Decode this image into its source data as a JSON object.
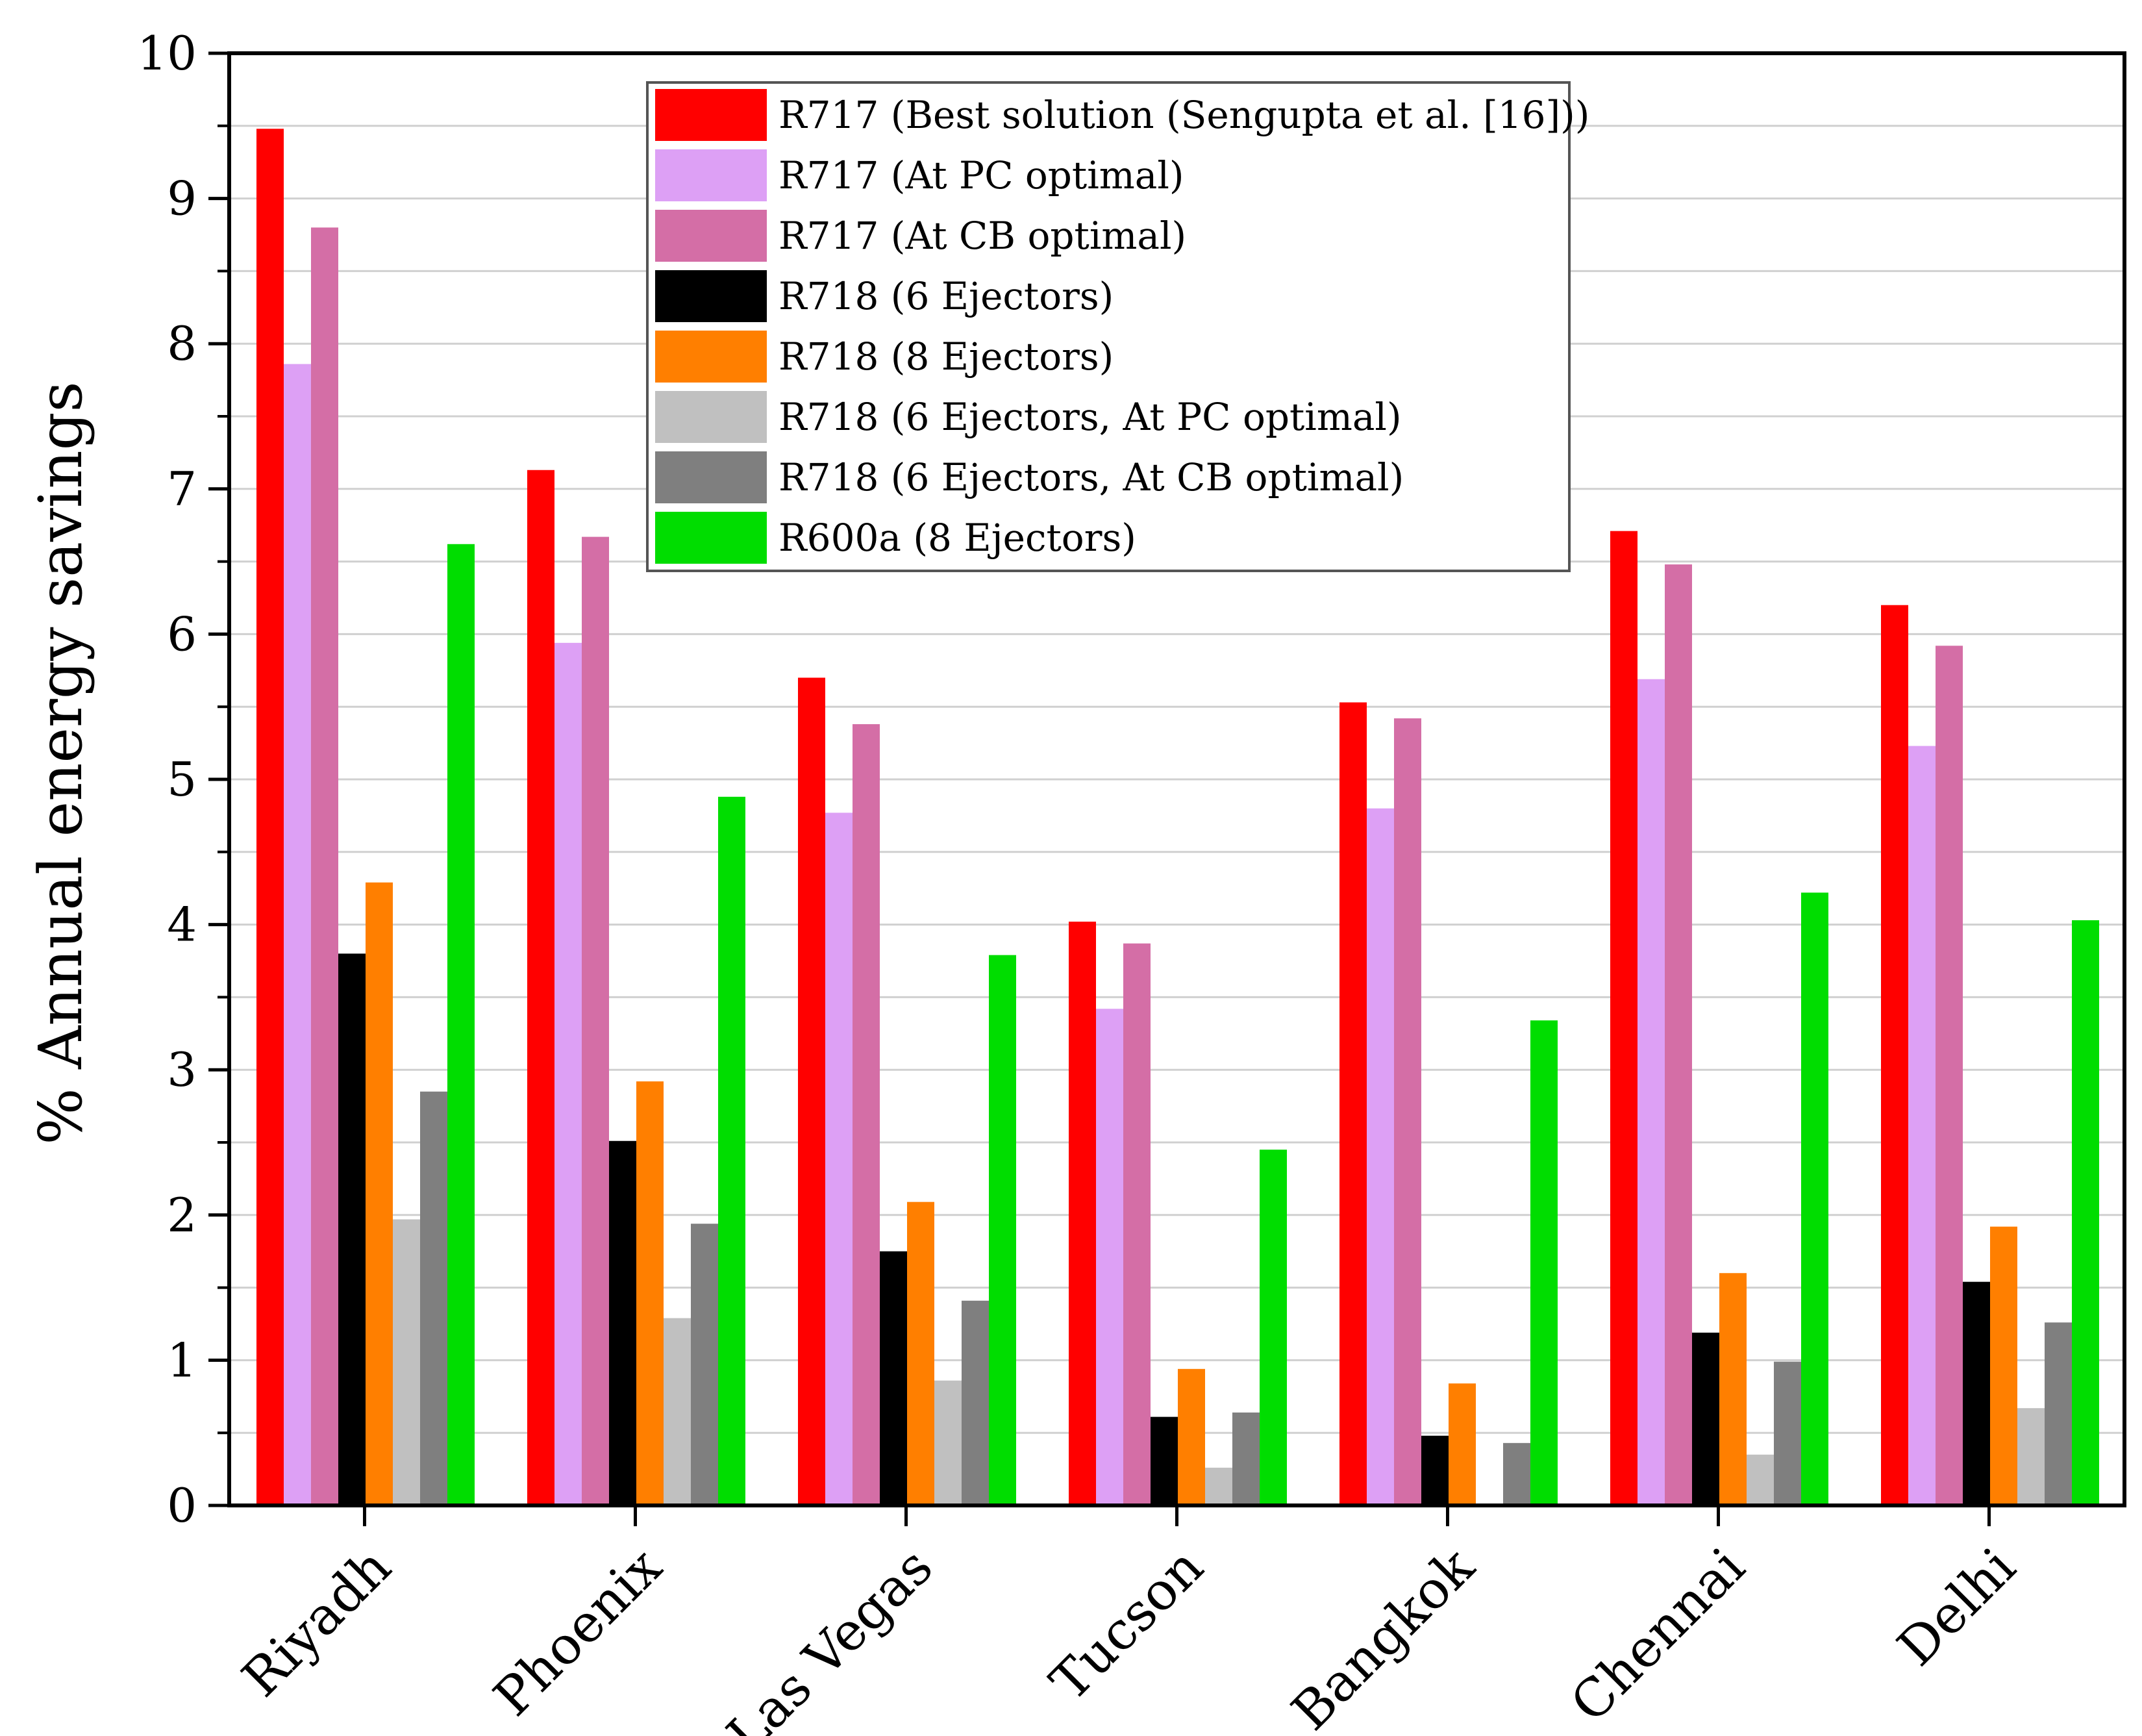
{
  "chart_data": {
    "type": "bar",
    "title": "",
    "xlabel": "",
    "ylabel": "% Annual energy savings",
    "ylim": [
      0,
      10
    ],
    "yticks": [
      "0",
      "1",
      "2",
      "3",
      "4",
      "5",
      "6",
      "7",
      "8",
      "9",
      "10"
    ],
    "grid": true,
    "legend_position": "top-center",
    "categories": [
      "Riyadh",
      "Phoenix",
      "Las Vegas",
      "Tucson",
      "Bangkok",
      "Chennai",
      "Delhi"
    ],
    "series": [
      {
        "name": "R717 (Best solution (Sengupta et al. [16]))",
        "color": "#ff0000",
        "values": [
          9.48,
          7.13,
          5.7,
          4.02,
          5.53,
          6.71,
          6.2
        ]
      },
      {
        "name": "R717 (At PC optimal)",
        "color": "#dda0f5",
        "values": [
          7.86,
          5.94,
          4.77,
          3.42,
          4.8,
          5.69,
          5.23
        ]
      },
      {
        "name": "R717 (At CB optimal)",
        "color": "#d46ea6",
        "values": [
          8.8,
          6.67,
          5.38,
          3.87,
          5.42,
          6.48,
          5.92
        ]
      },
      {
        "name": "R718 (6 Ejectors)",
        "color": "#000000",
        "values": [
          3.8,
          2.51,
          1.75,
          0.61,
          0.48,
          1.19,
          1.54
        ]
      },
      {
        "name": "R718 (8 Ejectors)",
        "color": "#ff7f00",
        "values": [
          4.29,
          2.92,
          2.09,
          0.94,
          0.84,
          1.6,
          1.92
        ]
      },
      {
        "name": "R718 (6 Ejectors, At PC optimal)",
        "color": "#c0c0c0",
        "values": [
          1.97,
          1.29,
          0.86,
          0.26,
          0.0,
          0.35,
          0.67
        ]
      },
      {
        "name": "R718 (6 Ejectors, At CB optimal)",
        "color": "#7f7f7f",
        "values": [
          2.85,
          1.94,
          1.41,
          0.64,
          0.43,
          0.99,
          1.26
        ]
      },
      {
        "name": "R600a (8 Ejectors)",
        "color": "#00dd00",
        "values": [
          6.62,
          4.88,
          3.79,
          2.45,
          3.34,
          4.22,
          4.03
        ]
      }
    ]
  }
}
